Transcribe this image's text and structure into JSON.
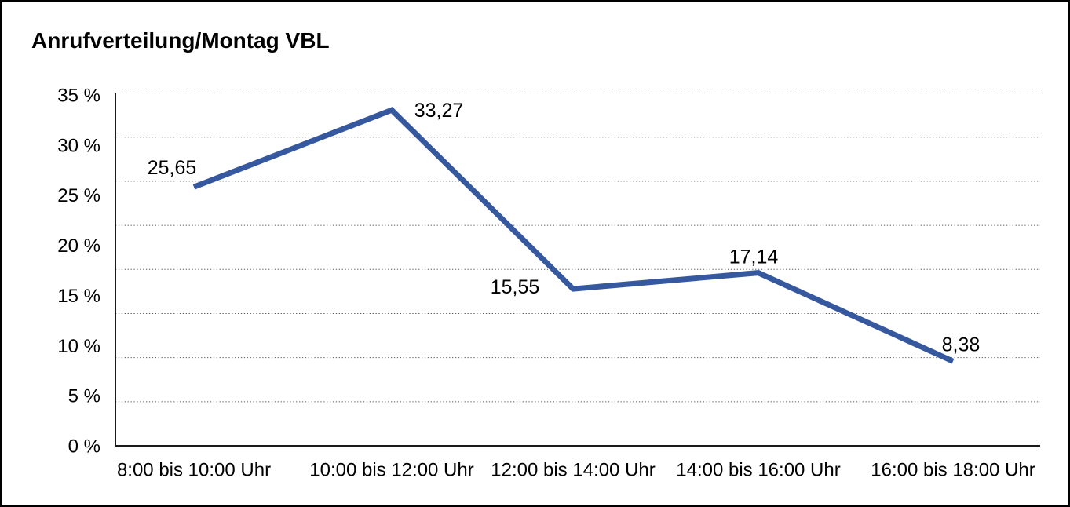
{
  "window": {
    "background": "#ffffff",
    "border_color": "#000000"
  },
  "header": {
    "title": "Anrufverteilung/Montag VBL"
  },
  "chart_data": {
    "type": "line",
    "title": "Anrufverteilung/Montag VBL",
    "categories": [
      "8:00 bis 10:00 Uhr",
      "10:00 bis 12:00 Uhr",
      "12:00 bis 14:00 Uhr",
      "14:00 bis 16:00 Uhr",
      "16:00 bis 18:00 Uhr"
    ],
    "series": [
      {
        "values": [
          25.65,
          33.27,
          15.55,
          17.14,
          8.38
        ],
        "point_labels": [
          "25,65",
          "33,27",
          "15,55",
          "17,14",
          "8,38"
        ],
        "color": "#36589E",
        "line_width": 7
      }
    ],
    "xlabel": "",
    "ylabel": "",
    "y_axis": {
      "min": 0,
      "max": 35,
      "tick_step": 5,
      "unit": "%",
      "tick_labels": [
        "35 %",
        "30 %",
        "25 %",
        "20 %",
        "15 %",
        "10 %",
        "5 %",
        "0 %"
      ]
    },
    "grid": "horizontal-dotted",
    "grid_color": "#5a5a5a",
    "axis_color": "#1a1a1a",
    "text_color": "#000000",
    "legend": "none"
  }
}
